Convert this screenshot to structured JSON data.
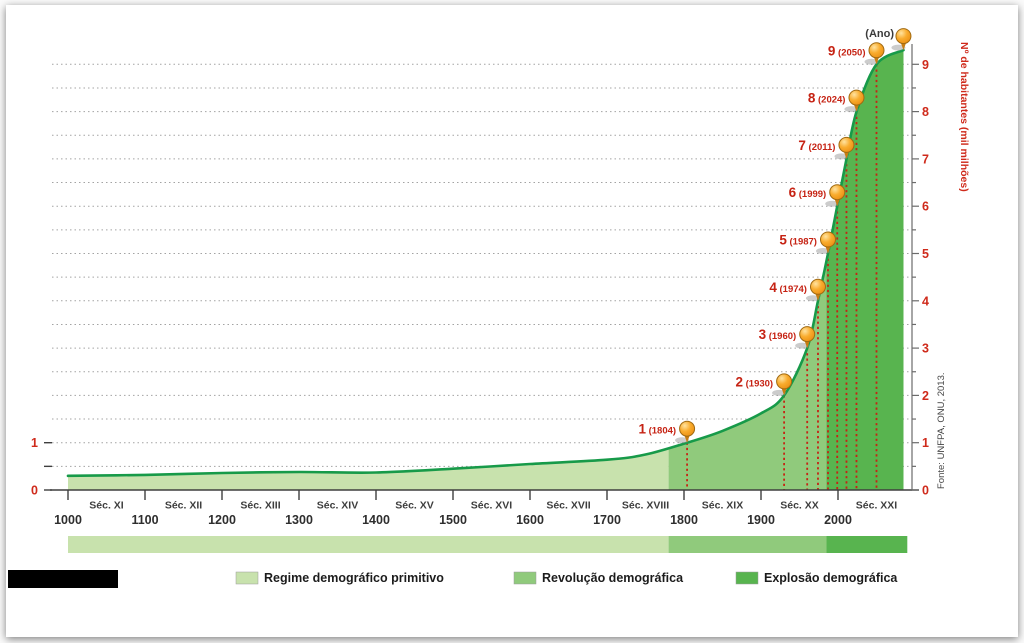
{
  "chart_data": {
    "type": "area",
    "top_axis_label": "(Ano)",
    "y_axis_label": "Nº de habitantes (mil milhões)",
    "source": "Fonte: UNFPA, ONU, 2013.",
    "x_axis": {
      "range": [
        1000,
        2100
      ],
      "year_ticks": [
        1000,
        1100,
        1200,
        1300,
        1400,
        1500,
        1600,
        1700,
        1800,
        1900,
        2000
      ],
      "century_labels": [
        "Séc. XI",
        "Séc. XII",
        "Séc. XIII",
        "Séc. XIV",
        "Séc. XV",
        "Séc. XVI",
        "Séc. XVII",
        "Séc. XVIII",
        "Séc. XIX",
        "Séc. XX",
        "Séc. XXI"
      ]
    },
    "y_axis": {
      "range": [
        0,
        9.5
      ],
      "right_tick_labels": [
        0,
        1,
        2,
        3,
        4,
        5,
        6,
        7,
        8,
        9
      ],
      "left_tick_labels": [
        1,
        0
      ],
      "gridline_step": 0.5
    },
    "curve_points": [
      [
        1000,
        0.3
      ],
      [
        1100,
        0.32
      ],
      [
        1200,
        0.36
      ],
      [
        1300,
        0.38
      ],
      [
        1400,
        0.37
      ],
      [
        1500,
        0.45
      ],
      [
        1600,
        0.55
      ],
      [
        1700,
        0.64
      ],
      [
        1750,
        0.75
      ],
      [
        1804,
        1.0
      ],
      [
        1850,
        1.25
      ],
      [
        1900,
        1.62
      ],
      [
        1930,
        2.0
      ],
      [
        1960,
        3.0
      ],
      [
        1974,
        4.0
      ],
      [
        1987,
        5.0
      ],
      [
        1999,
        6.0
      ],
      [
        2011,
        7.0
      ],
      [
        2024,
        8.0
      ],
      [
        2050,
        9.0
      ],
      [
        2085,
        9.3
      ]
    ],
    "milestones": [
      {
        "n": 1,
        "year": 1804,
        "value": 1
      },
      {
        "n": 2,
        "year": 1930,
        "value": 2
      },
      {
        "n": 3,
        "year": 1960,
        "value": 3
      },
      {
        "n": 4,
        "year": 1974,
        "value": 4
      },
      {
        "n": 5,
        "year": 1987,
        "value": 5
      },
      {
        "n": 6,
        "year": 1999,
        "value": 6
      },
      {
        "n": 7,
        "year": 2011,
        "value": 7
      },
      {
        "n": 8,
        "year": 2024,
        "value": 8
      },
      {
        "n": 9,
        "year": 2050,
        "value": 9
      }
    ],
    "end_marker": {
      "year": 2085,
      "value": 9.3
    },
    "periods": [
      {
        "label": "Regime demográfico primitivo",
        "start_year": 1000,
        "end_year": 1780,
        "color": "#c8e2ad"
      },
      {
        "label": "Revolução demográfica",
        "start_year": 1780,
        "end_year": 1985,
        "color": "#90ca7c"
      },
      {
        "label": "Explosão demográfica",
        "start_year": 1985,
        "end_year": 2090,
        "color": "#58b44f"
      }
    ],
    "colors": {
      "curve": "#179a49",
      "gridline": "#a3a3a3",
      "milestone_red": "#c62314",
      "pin_orange": "#f6a41f"
    }
  }
}
